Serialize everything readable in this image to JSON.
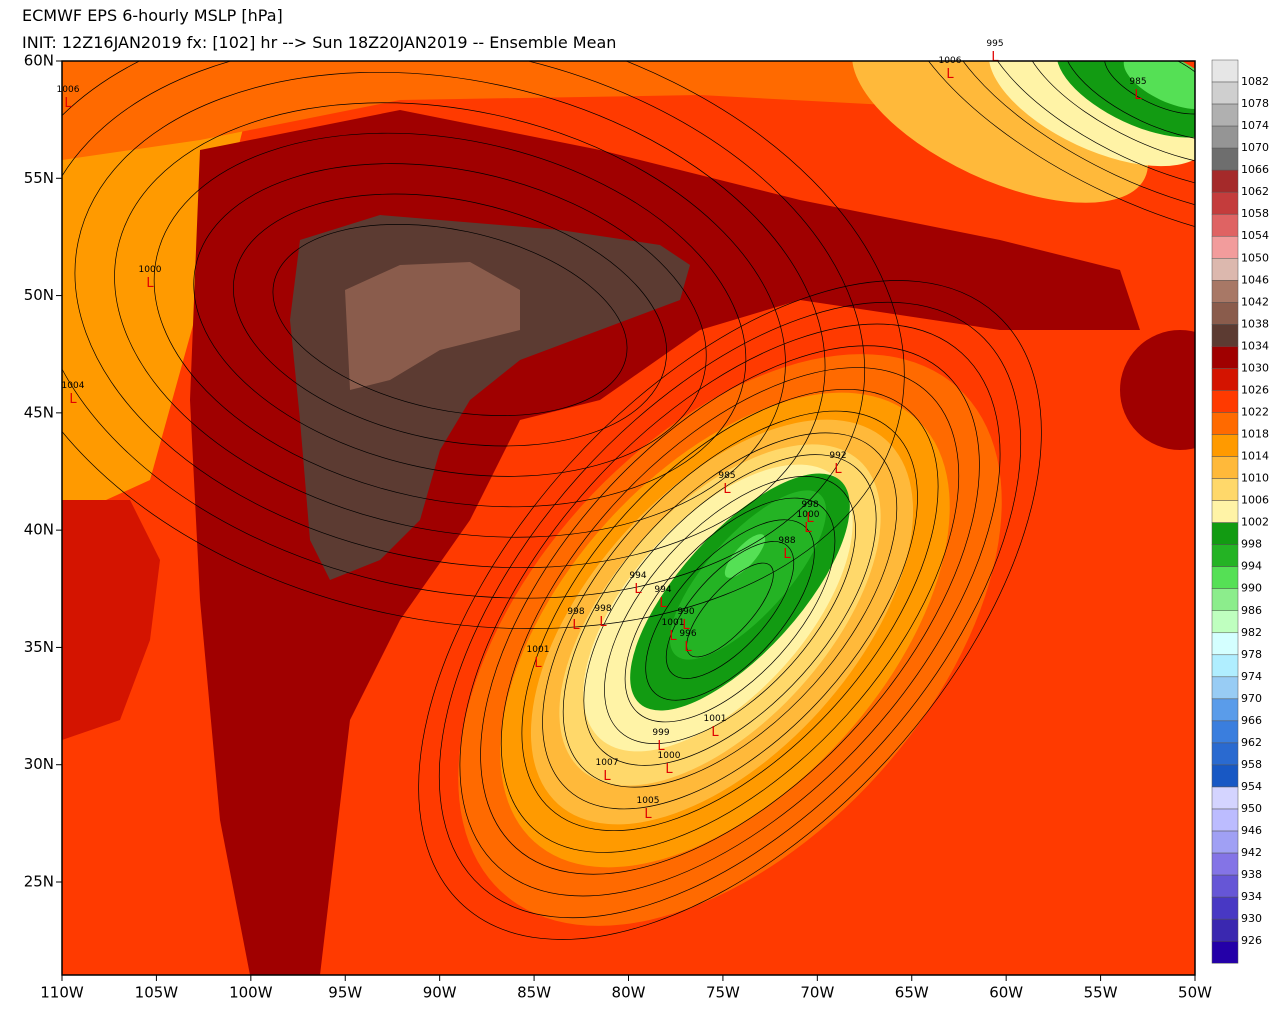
{
  "header": {
    "title": "ECMWF EPS 6-hourly MSLP [hPa]",
    "subtitle": "INIT: 12Z16JAN2019 fx: [102] hr --> Sun 18Z20JAN2019 -- Ensemble Mean"
  },
  "map": {
    "latitudes": [
      {
        "value": 60,
        "label": "60N"
      },
      {
        "value": 55,
        "label": "55N"
      },
      {
        "value": 50,
        "label": "50N"
      },
      {
        "value": 45,
        "label": "45N"
      },
      {
        "value": 40,
        "label": "40N"
      },
      {
        "value": 35,
        "label": "35N"
      },
      {
        "value": 30,
        "label": "30N"
      },
      {
        "value": 25,
        "label": "25N"
      }
    ],
    "longitudes": [
      {
        "value": -110,
        "label": "110W"
      },
      {
        "value": -105,
        "label": "105W"
      },
      {
        "value": -100,
        "label": "100W"
      },
      {
        "value": -95,
        "label": "95W"
      },
      {
        "value": -90,
        "label": "90W"
      },
      {
        "value": -85,
        "label": "85W"
      },
      {
        "value": -80,
        "label": "80W"
      },
      {
        "value": -75,
        "label": "75W"
      },
      {
        "value": -70,
        "label": "70W"
      },
      {
        "value": -65,
        "label": "65W"
      },
      {
        "value": -60,
        "label": "60W"
      },
      {
        "value": -55,
        "label": "55W"
      },
      {
        "value": -50,
        "label": "50W"
      }
    ],
    "low_symbol": "L",
    "pressure_labels": [
      1006,
      1006,
      995,
      985,
      1000,
      1004,
      992,
      985,
      988,
      1000,
      998,
      994,
      994,
      990,
      1001,
      996,
      998,
      998,
      1001,
      1001,
      999,
      1000,
      1007,
      1005
    ]
  },
  "colorbar": {
    "levels": [
      1082,
      1078,
      1074,
      1070,
      1066,
      1062,
      1058,
      1054,
      1050,
      1046,
      1042,
      1038,
      1034,
      1030,
      1026,
      1022,
      1018,
      1014,
      1010,
      1006,
      1002,
      998,
      994,
      990,
      986,
      982,
      978,
      974,
      970,
      966,
      962,
      958,
      954,
      950,
      946,
      942,
      938,
      934,
      930,
      926
    ],
    "colors": [
      "#e6e6e6",
      "#cfcfcf",
      "#b0b0b0",
      "#959595",
      "#6e6e6e",
      "#a52a2a",
      "#c43c3c",
      "#df6363",
      "#f29c9c",
      "#dcb8ae",
      "#a87866",
      "#8a5c4c",
      "#5c3b32",
      "#a00000",
      "#d41400",
      "#ff3a00",
      "#ff6a00",
      "#ff9a00",
      "#ffb93a",
      "#ffd86a",
      "#fff3a6",
      "#129b12",
      "#24b324",
      "#55e055",
      "#8ced8c",
      "#bfffbf",
      "#d4ffff",
      "#b0eeff",
      "#98ccf4",
      "#5a9cea",
      "#3a7ede",
      "#2a6ad0",
      "#1858c4",
      "#d4d4ff",
      "#bcbcff",
      "#a0a0f4",
      "#8474e6",
      "#6656d6",
      "#4838c4",
      "#3a28b0",
      "#2400a8"
    ]
  }
}
